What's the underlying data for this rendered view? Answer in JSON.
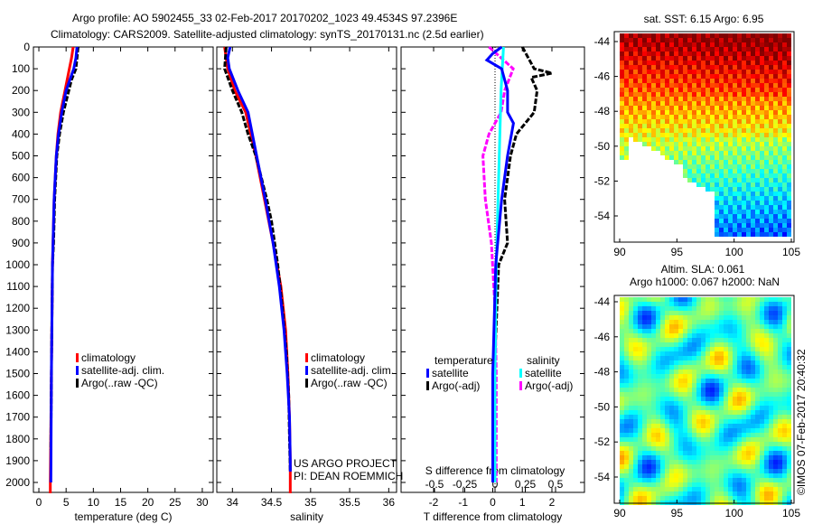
{
  "title_line1": "Argo profile: AO 5902455_33 02-Feb-2017 20170202_1023 49.4534S 97.2396E",
  "title_line2": "Climatology: CARS2009. Satellite-adjusted climatology: synTS_20170131.nc (2.5d earlier)",
  "credit_line1": "US ARGO PROJECT",
  "credit_line2": "PI: DEAN ROEMMICH",
  "timestamp": "©IMOS 07-Feb-2017 20:40:32",
  "colors": {
    "climatology": "#ff0000",
    "satellite": "#0000ff",
    "argo": "#000000",
    "sal_satellite": "#00ffff",
    "sal_argo": "#ff00ff"
  },
  "chart_data": [
    {
      "type": "line",
      "xlabel": "temperature (deg C)",
      "ylabel": "",
      "xlim": [
        -1,
        32
      ],
      "ylim": [
        2050,
        0
      ],
      "xticks": [
        "0",
        "5",
        "10",
        "15",
        "20",
        "25",
        "30"
      ],
      "yticks": [
        "0",
        "100",
        "200",
        "300",
        "400",
        "500",
        "600",
        "700",
        "800",
        "900",
        "1000",
        "1100",
        "1200",
        "1300",
        "1400",
        "1500",
        "1600",
        "1700",
        "1800",
        "1900",
        "2000"
      ],
      "legend": [
        "climatology",
        "satellite-adj. clim.",
        "Argo(..raw -QC)"
      ],
      "series": [
        {
          "name": "climatology",
          "depth": [
            0,
            50,
            100,
            200,
            300,
            400,
            500,
            700,
            1000,
            1500,
            2000,
            2050
          ],
          "values": [
            6.3,
            6.0,
            5.6,
            4.8,
            4.0,
            3.5,
            3.2,
            2.8,
            2.5,
            2.3,
            2.1,
            2.1
          ]
        },
        {
          "name": "satellite-adj. clim.",
          "depth": [
            0,
            50,
            100,
            200,
            300,
            400,
            500,
            700,
            1000,
            1500,
            2000
          ],
          "values": [
            7.0,
            6.8,
            6.4,
            5.0,
            4.2,
            3.6,
            3.2,
            2.8,
            2.5,
            2.3,
            2.2
          ]
        },
        {
          "name": "Argo(..raw -QC)",
          "depth": [
            0,
            50,
            100,
            150,
            200,
            300,
            400,
            500,
            700,
            900,
            1000,
            1500,
            1850
          ],
          "values": [
            7.2,
            7.0,
            6.8,
            6.0,
            5.5,
            4.5,
            3.8,
            3.3,
            2.9,
            2.7,
            2.5,
            2.3,
            2.2
          ]
        }
      ]
    },
    {
      "type": "line",
      "xlabel": "salinity",
      "xlim": [
        33.8,
        36.1
      ],
      "ylim": [
        2050,
        0
      ],
      "xticks": [
        "34",
        "34.5",
        "35",
        "35.5",
        "36"
      ],
      "legend": [
        "climatology",
        "satellite-adj. clim.",
        "Argo(..raw -QC)"
      ],
      "series": [
        {
          "name": "climatology",
          "depth": [
            0,
            100,
            200,
            300,
            500,
            700,
            900,
            1100,
            1300,
            1500,
            1700,
            1900,
            2050
          ],
          "values": [
            33.9,
            33.94,
            34.03,
            34.17,
            34.3,
            34.41,
            34.52,
            34.62,
            34.68,
            34.71,
            34.73,
            34.74,
            34.74
          ]
        },
        {
          "name": "satellite-adj. clim.",
          "depth": [
            0,
            50,
            100,
            200,
            300,
            500,
            700,
            900,
            1100,
            1300,
            1500,
            1700,
            1900,
            1950
          ],
          "values": [
            33.97,
            33.94,
            33.96,
            34.07,
            34.2,
            34.31,
            34.42,
            34.52,
            34.6,
            34.66,
            34.7,
            34.73,
            34.74,
            34.74
          ]
        },
        {
          "name": "Argo(..raw -QC)",
          "depth": [
            0,
            100,
            200,
            300,
            400,
            500,
            600,
            700,
            800,
            900,
            1000,
            1200,
            1400,
            1600,
            1800,
            1950
          ],
          "values": [
            33.92,
            33.9,
            34.0,
            34.12,
            34.2,
            34.3,
            34.37,
            34.44,
            34.5,
            34.54,
            34.58,
            34.64,
            34.69,
            34.72,
            34.73,
            34.74
          ]
        }
      ]
    },
    {
      "type": "line",
      "xlabel": "T difference from climatology",
      "x2label": "S difference from climatology",
      "xlim": [
        -3.1,
        3.1
      ],
      "ylim": [
        2050,
        0
      ],
      "xticks": [
        "-2",
        "-1",
        "0",
        "1",
        "2"
      ],
      "x2ticks": [
        "-0.5",
        "-0.25",
        "0",
        "0.25",
        "0.5"
      ],
      "legend_headers": [
        "temperature",
        "salinity"
      ],
      "legend": [
        "satellite",
        "Argo(-adj)",
        "satellite",
        "Argo(-adj)"
      ],
      "series": [
        {
          "name": "T satellite",
          "axis": "T",
          "depth": [
            0,
            30,
            60,
            100,
            200,
            300,
            350,
            500,
            700,
            1000,
            1500,
            2000
          ],
          "values": [
            0.3,
            0.0,
            -0.2,
            0.3,
            0.5,
            0.5,
            0.7,
            0.5,
            0.3,
            0.1,
            0.0,
            0.0
          ]
        },
        {
          "name": "T Argo(-adj)",
          "axis": "T",
          "depth": [
            0,
            50,
            100,
            120,
            140,
            200,
            300,
            400,
            500,
            700,
            900,
            1000,
            1500,
            2000
          ],
          "values": [
            1.0,
            1.2,
            1.4,
            2.0,
            1.3,
            1.5,
            1.4,
            0.8,
            0.6,
            0.4,
            0.5,
            0.2,
            0.05,
            0.05
          ]
        },
        {
          "name": "S satellite",
          "axis": "S",
          "depth": [
            0,
            100,
            200,
            400,
            600,
            800,
            1000,
            1500,
            2000
          ],
          "values": [
            0.07,
            0.06,
            0.05,
            0.04,
            0.03,
            0.02,
            0.01,
            0.0,
            0.0
          ]
        },
        {
          "name": "S Argo(-adj)",
          "axis": "S",
          "depth": [
            0,
            50,
            100,
            200,
            300,
            400,
            500,
            700,
            900,
            1200,
            1500,
            2000
          ],
          "values": [
            -0.05,
            0.05,
            0.15,
            0.08,
            0.05,
            -0.05,
            -0.1,
            -0.08,
            -0.03,
            0.0,
            0.01,
            0.01
          ]
        }
      ]
    },
    {
      "type": "heatmap",
      "title": "sat. SST: 6.15 Argo: 6.95",
      "xlim": [
        89.5,
        105.2
      ],
      "ylim": [
        -55.5,
        -43.5
      ],
      "xticks": [
        "90",
        "95",
        "100",
        "105"
      ],
      "yticks": [
        "-44",
        "-46",
        "-48",
        "-50",
        "-52",
        "-54"
      ]
    },
    {
      "type": "heatmap",
      "title_line1": "Altim. SLA: 0.061",
      "title_line2": "Argo h1000: 0.067 h2000: NaN",
      "xlim": [
        89.5,
        105.2
      ],
      "ylim": [
        -55.5,
        -43.5
      ],
      "xticks": [
        "90",
        "95",
        "100",
        "105"
      ],
      "yticks": [
        "-44",
        "-46",
        "-48",
        "-50",
        "-52",
        "-54"
      ]
    }
  ]
}
